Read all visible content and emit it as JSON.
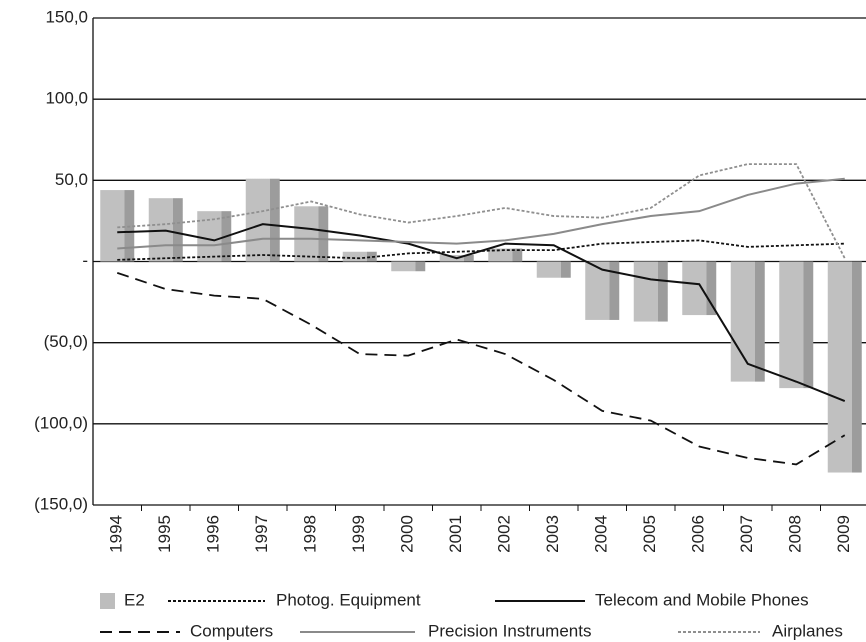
{
  "chart_data": {
    "type": "bar_line",
    "categories": [
      "1994",
      "1995",
      "1996",
      "1997",
      "1998",
      "1999",
      "2000",
      "2001",
      "2002",
      "2003",
      "2004",
      "2005",
      "2006",
      "2007",
      "2008",
      "2009"
    ],
    "ylim": [
      -150,
      150
    ],
    "yticks": [
      {
        "value": -150,
        "label": "(150,0)"
      },
      {
        "value": -100,
        "label": "(100,0)"
      },
      {
        "value": -50,
        "label": "(50,0)"
      },
      {
        "value": 0,
        "label": "-"
      },
      {
        "value": 50,
        "label": "50,0"
      },
      {
        "value": 100,
        "label": "100,0"
      },
      {
        "value": 150,
        "label": "150,0"
      }
    ],
    "grid": true,
    "legend": "bottom",
    "series": [
      {
        "name": "E2",
        "kind": "bar",
        "color": "#bdbdbd",
        "values": [
          44,
          39,
          31,
          51,
          34,
          6,
          -6,
          4,
          8,
          -10,
          -36,
          -37,
          -33,
          -74,
          -78,
          -130
        ]
      },
      {
        "name": "Photog. Equipment",
        "kind": "line",
        "dash": "dotted",
        "color": "#111111",
        "values": [
          1,
          2,
          3,
          4,
          3,
          2,
          5,
          6,
          7,
          7,
          11,
          12,
          13,
          9,
          10,
          11
        ]
      },
      {
        "name": "Telecom and Mobile Phones",
        "kind": "line",
        "dash": "solid",
        "color": "#111111",
        "values": [
          18,
          19,
          13,
          23,
          20,
          16,
          11,
          2,
          11,
          10,
          -5,
          -11,
          -14,
          -63,
          -74,
          -86
        ]
      },
      {
        "name": "Computers",
        "kind": "line",
        "dash": "dashed",
        "color": "#111111",
        "values": [
          -7,
          -17,
          -21,
          -23,
          -39,
          -57,
          -58,
          -48,
          -57,
          -73,
          -92,
          -98,
          -114,
          -121,
          -125,
          -107
        ]
      },
      {
        "name": "Precision Instruments",
        "kind": "line",
        "dash": "solid",
        "color": "#8a8a8a",
        "values": [
          8,
          10,
          10,
          14,
          14,
          13,
          12,
          11,
          13,
          17,
          23,
          28,
          31,
          41,
          48,
          51
        ]
      },
      {
        "name": "Airplanes",
        "kind": "line",
        "dash": "dotted",
        "color": "#8f8f8f",
        "values": [
          21,
          23,
          26,
          31,
          37,
          29,
          24,
          28,
          33,
          28,
          27,
          33,
          53,
          60,
          60,
          2
        ]
      }
    ]
  }
}
